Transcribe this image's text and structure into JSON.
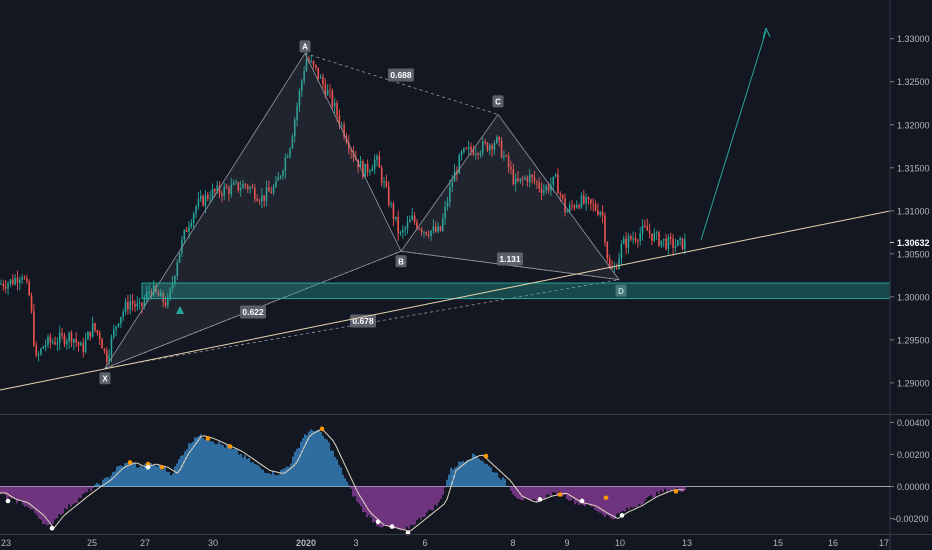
{
  "chart_data": [
    {
      "type": "candlestick",
      "title": "",
      "y_axis": {
        "position": "right",
        "range": [
          1.2865,
          1.3345
        ],
        "ticks": [
          "1.33000",
          "1.32500",
          "1.32000",
          "1.31500",
          "1.31000",
          "1.30500",
          "1.30000",
          "1.29500",
          "1.29000"
        ],
        "last_price": "1.30632"
      },
      "x_axis": {
        "ticks": [
          "23",
          "25",
          "27",
          "30",
          "2020",
          "3",
          "6",
          "8",
          "9",
          "10",
          "13",
          "15",
          "16",
          "17"
        ]
      },
      "grid": false,
      "colors": {
        "up": "#26a69a",
        "down": "#ef5350",
        "background": "#131722"
      },
      "pattern": {
        "kind": "harmonic",
        "points": [
          {
            "label": "X",
            "price": 1.2917
          },
          {
            "label": "A",
            "price": 1.3283
          },
          {
            "label": "B",
            "price": 1.3053
          },
          {
            "label": "C",
            "price": 1.3212
          },
          {
            "label": "D",
            "price": 1.302
          }
        ],
        "ratios": [
          "0.688",
          "0.622",
          "1.131",
          "0.678"
        ]
      },
      "zones": [
        {
          "price_top": 1.3016,
          "price_bottom": 1.2998,
          "color": "#26a69a"
        }
      ],
      "trendline": {
        "color": "#e8d7b0"
      },
      "projection_arrow": {
        "color": "#26a69a"
      }
    },
    {
      "type": "histogram",
      "title": "",
      "y_axis": {
        "position": "right",
        "range": [
          -0.0029,
          0.0044
        ],
        "ticks": [
          "0.00400",
          "0.00200",
          "0.00000",
          "-0.00200"
        ]
      },
      "colors": {
        "positive": "#42a5f5",
        "negative": "#ab47bc",
        "signal": "#e0d6c0",
        "peak_marker": "#ff9800",
        "trough_marker": "#ffffff"
      }
    }
  ]
}
